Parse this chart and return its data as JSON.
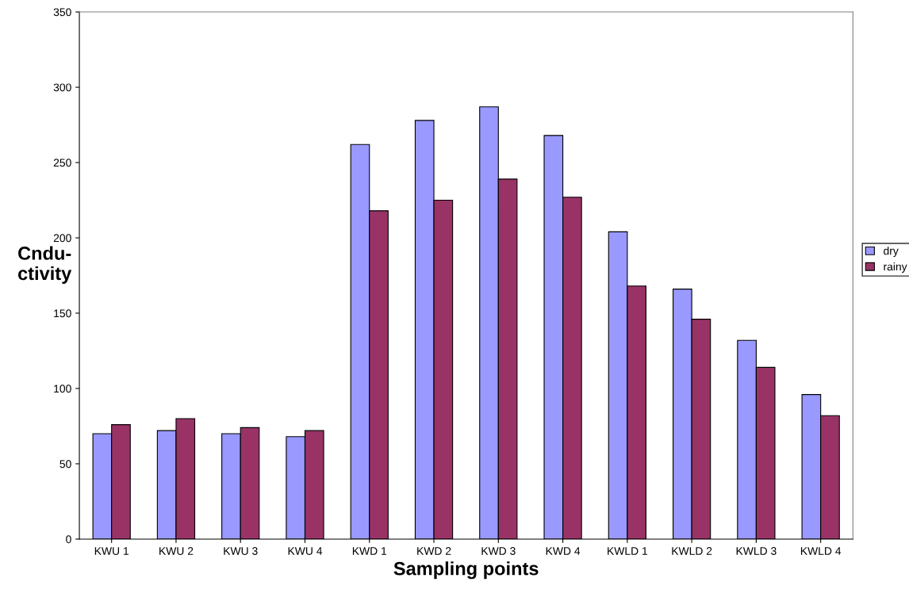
{
  "chart_data": {
    "type": "bar",
    "xlabel": "Sampling points",
    "ylabel": "Cndu-\nctivity",
    "categories": [
      "KWU 1",
      "KWU 2",
      "KWU 3",
      "KWU 4",
      "KWD 1",
      "KWD 2",
      "KWD 3",
      "KWD 4",
      "KWLD 1",
      "KWLD 2",
      "KWLD 3",
      "KWLD 4"
    ],
    "series": [
      {
        "name": "dry",
        "color": "#9999ff",
        "values": [
          70,
          72,
          70,
          68,
          262,
          278,
          287,
          268,
          204,
          166,
          132,
          96
        ]
      },
      {
        "name": "rainy",
        "color": "#993366",
        "values": [
          76,
          80,
          74,
          72,
          218,
          225,
          239,
          227,
          168,
          146,
          114,
          82
        ]
      }
    ],
    "ylim": [
      0,
      350
    ],
    "yticks": [
      0,
      50,
      100,
      150,
      200,
      250,
      300,
      350
    ],
    "grid": false,
    "legend": "right"
  }
}
